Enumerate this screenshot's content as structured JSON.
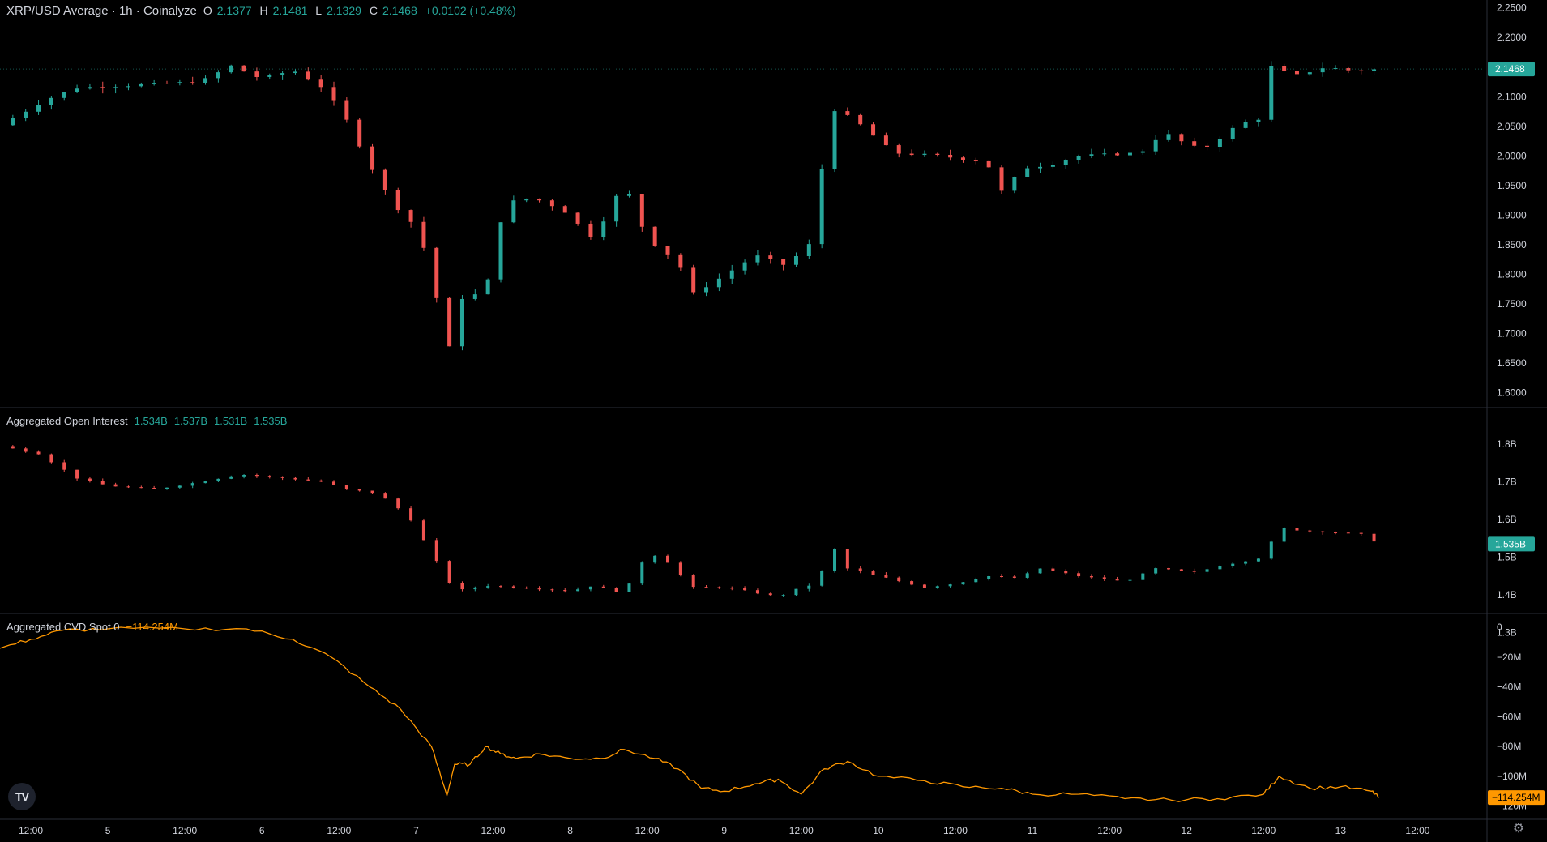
{
  "price_pane": {
    "legend_title": "XRP/USD Average · 1h · Coinalyze",
    "ohlc": {
      "o_label": "O",
      "o": "2.1377",
      "h_label": "H",
      "h": "2.1481",
      "l_label": "L",
      "l": "2.1329",
      "c_label": "C",
      "c": "2.1468",
      "change": "+0.0102 (+0.48%)"
    },
    "y_ticks": [
      "2.2500",
      "2.2000",
      "2.1500",
      "2.1000",
      "2.0500",
      "2.0000",
      "1.9500",
      "1.9000",
      "1.8500",
      "1.8000",
      "1.7500",
      "1.7000",
      "1.6500",
      "1.6000"
    ],
    "last_price_label": "2.1468"
  },
  "oi_pane": {
    "legend_title": "Aggregated Open Interest",
    "values": [
      "1.534B",
      "1.537B",
      "1.531B",
      "1.535B"
    ],
    "y_ticks": [
      "1.8B",
      "1.7B",
      "1.6B",
      "1.5B",
      "1.4B",
      "1.3B"
    ],
    "last_label": "1.535B"
  },
  "cvd_pane": {
    "legend_title": "Aggregated CVD Spot 0",
    "value": "−114.254M",
    "y_ticks": [
      "0",
      "−20M",
      "−40M",
      "−60M",
      "−80M",
      "−100M",
      "−120M"
    ],
    "last_label": "−114.254M"
  },
  "time_axis": {
    "labels": [
      "12:00",
      "5",
      "12:00",
      "6",
      "12:00",
      "7",
      "12:00",
      "8",
      "12:00",
      "9",
      "12:00",
      "10",
      "12:00",
      "11",
      "12:00",
      "12",
      "12:00",
      "13",
      "12:00"
    ]
  },
  "logo_text": "TV",
  "colors": {
    "up": "#26a69a",
    "down": "#ef5350",
    "cvd": "#ff9800",
    "grid": "#2a2e39",
    "text": "#d1d4dc",
    "bg": "#000000"
  },
  "chart_data": [
    {
      "type": "candlestick",
      "title": "XRP/USD Average · 1h · Coinalyze",
      "interval": "1h",
      "ylim": [
        1.59,
        2.255
      ],
      "x_range_days": [
        4.3,
        13.95
      ],
      "close_path": [
        [
          4.3,
          2.052
        ],
        [
          4.6,
          2.095
        ],
        [
          4.8,
          2.115
        ],
        [
          5.2,
          2.12
        ],
        [
          5.6,
          2.125
        ],
        [
          5.8,
          2.152
        ],
        [
          6.0,
          2.13
        ],
        [
          6.2,
          2.145
        ],
        [
          6.4,
          2.115
        ],
        [
          6.55,
          2.06
        ],
        [
          6.7,
          1.985
        ],
        [
          6.85,
          1.92
        ],
        [
          7.0,
          1.88
        ],
        [
          7.1,
          1.81
        ],
        [
          7.2,
          1.66
        ],
        [
          7.3,
          1.76
        ],
        [
          7.45,
          1.77
        ],
        [
          7.55,
          1.89
        ],
        [
          7.65,
          1.93
        ],
        [
          7.8,
          1.925
        ],
        [
          7.95,
          1.91
        ],
        [
          8.15,
          1.86
        ],
        [
          8.35,
          1.955
        ],
        [
          8.5,
          1.86
        ],
        [
          8.7,
          1.82
        ],
        [
          8.8,
          1.768
        ],
        [
          8.95,
          1.79
        ],
        [
          9.2,
          1.832
        ],
        [
          9.4,
          1.815
        ],
        [
          9.55,
          1.85
        ],
        [
          9.7,
          2.08
        ],
        [
          9.85,
          2.06
        ],
        [
          10.1,
          2.005
        ],
        [
          10.4,
          2.0
        ],
        [
          10.7,
          1.99
        ],
        [
          10.8,
          1.94
        ],
        [
          10.95,
          1.98
        ],
        [
          11.1,
          1.985
        ],
        [
          11.3,
          2.0
        ],
        [
          11.7,
          2.005
        ],
        [
          11.85,
          2.04
        ],
        [
          12.0,
          2.02
        ],
        [
          12.1,
          2.01
        ],
        [
          12.35,
          2.055
        ],
        [
          12.5,
          2.065
        ],
        [
          12.55,
          2.15
        ],
        [
          12.7,
          2.135
        ],
        [
          12.9,
          2.15
        ],
        [
          13.1,
          2.143
        ],
        [
          13.25,
          2.1468
        ]
      ],
      "last_close": 2.1468
    },
    {
      "type": "candlestick",
      "title": "Aggregated Open Interest",
      "ylim": [
        1.37,
        1.88
      ],
      "close_path": [
        [
          4.3,
          1.795
        ],
        [
          4.55,
          1.775
        ],
        [
          4.8,
          1.71
        ],
        [
          5.0,
          1.69
        ],
        [
          5.3,
          1.68
        ],
        [
          5.6,
          1.7
        ],
        [
          5.85,
          1.72
        ],
        [
          6.15,
          1.71
        ],
        [
          6.4,
          1.7
        ],
        [
          6.55,
          1.68
        ],
        [
          6.75,
          1.67
        ],
        [
          6.95,
          1.61
        ],
        [
          7.05,
          1.545
        ],
        [
          7.25,
          1.41
        ],
        [
          7.45,
          1.425
        ],
        [
          7.65,
          1.42
        ],
        [
          7.85,
          1.415
        ],
        [
          8.0,
          1.41
        ],
        [
          8.15,
          1.425
        ],
        [
          8.35,
          1.405
        ],
        [
          8.5,
          1.51
        ],
        [
          8.6,
          1.5
        ],
        [
          8.8,
          1.42
        ],
        [
          9.0,
          1.42
        ],
        [
          9.15,
          1.41
        ],
        [
          9.35,
          1.395
        ],
        [
          9.5,
          1.42
        ],
        [
          9.6,
          1.43
        ],
        [
          9.7,
          1.53
        ],
        [
          9.8,
          1.47
        ],
        [
          10.0,
          1.45
        ],
        [
          10.3,
          1.42
        ],
        [
          10.5,
          1.43
        ],
        [
          10.7,
          1.45
        ],
        [
          10.9,
          1.445
        ],
        [
          11.05,
          1.47
        ],
        [
          11.3,
          1.45
        ],
        [
          11.6,
          1.435
        ],
        [
          11.8,
          1.47
        ],
        [
          12.05,
          1.46
        ],
        [
          12.25,
          1.48
        ],
        [
          12.5,
          1.5
        ],
        [
          12.6,
          1.58
        ],
        [
          12.75,
          1.57
        ],
        [
          13.0,
          1.565
        ],
        [
          13.15,
          1.56
        ],
        [
          13.25,
          1.535
        ]
      ],
      "last_value": "1.535B"
    },
    {
      "type": "line",
      "title": "Aggregated CVD Spot 0",
      "ylabel": "",
      "ylim": [
        -124,
        5
      ],
      "units": "M",
      "x": [
        4.3,
        4.5,
        4.7,
        5.0,
        5.5,
        5.9,
        6.2,
        6.45,
        6.7,
        6.9,
        7.1,
        7.2,
        7.25,
        7.35,
        7.45,
        7.55,
        7.65,
        7.8,
        8.0,
        8.2,
        8.35,
        8.55,
        8.7,
        8.85,
        9.0,
        9.2,
        9.35,
        9.5,
        9.65,
        9.8,
        10.0,
        10.3,
        10.55,
        10.8,
        11.0,
        11.3,
        11.6,
        11.9,
        12.2,
        12.5,
        12.6,
        12.8,
        13.0,
        13.2,
        13.25
      ],
      "values": [
        -14,
        -8,
        -2,
        -1,
        -1,
        -1,
        -8,
        -20,
        -40,
        -55,
        -80,
        -113,
        -92,
        -92,
        -80,
        -85,
        -88,
        -85,
        -88,
        -88,
        -82,
        -88,
        -95,
        -108,
        -110,
        -105,
        -102,
        -112,
        -95,
        -90,
        -100,
        -103,
        -107,
        -108,
        -112,
        -112,
        -115,
        -116,
        -115,
        -112,
        -100,
        -108,
        -107,
        -110,
        -114.254
      ],
      "last_value": "−114.254M"
    }
  ]
}
